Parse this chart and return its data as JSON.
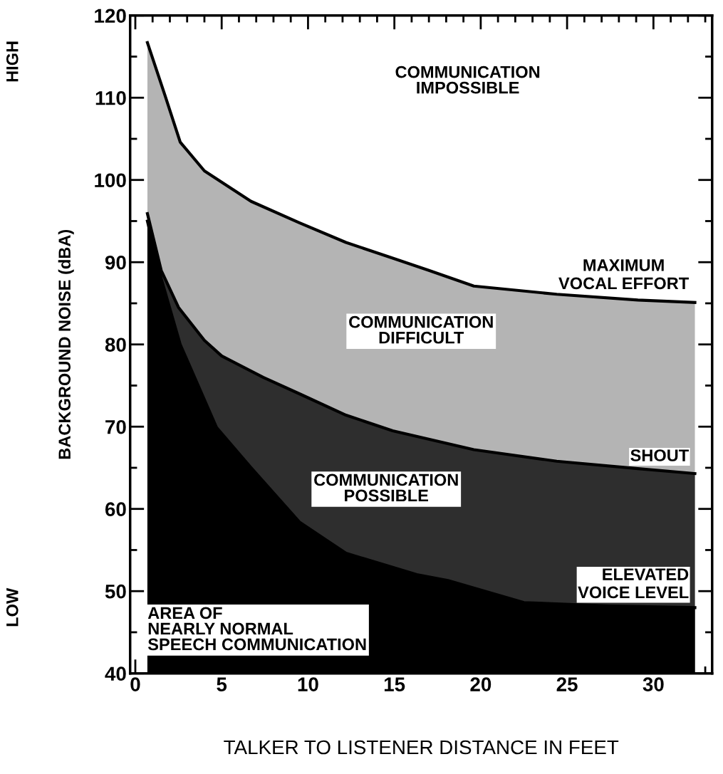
{
  "chart_data": {
    "type": "area",
    "xlabel": "TALKER TO LISTENER DISTANCE IN FEET",
    "ylabel": "BACKGROUND NOISE (dBA)",
    "xlim": [
      -0.3,
      33.4
    ],
    "ylim": [
      40,
      120
    ],
    "xticks": [
      0,
      {
        "value": 1,
        "label": null
      },
      {
        "value": 2,
        "label": null
      },
      {
        "value": 3,
        "label": null
      },
      {
        "value": 4,
        "label": null
      },
      5,
      {
        "value": 6,
        "label": null
      },
      {
        "value": 7,
        "label": null
      },
      {
        "value": 8,
        "label": null
      },
      {
        "value": 9,
        "label": null
      },
      10,
      {
        "value": 11,
        "label": null
      },
      {
        "value": 12,
        "label": null
      },
      {
        "value": 13,
        "label": null
      },
      {
        "value": 14,
        "label": null
      },
      15,
      {
        "value": 16,
        "label": null
      },
      {
        "value": 17,
        "label": null
      },
      {
        "value": 18,
        "label": null
      },
      {
        "value": 19,
        "label": null
      },
      20,
      {
        "value": 21,
        "label": null
      },
      {
        "value": 22,
        "label": null
      },
      {
        "value": 23,
        "label": null
      },
      {
        "value": 24,
        "label": null
      },
      25,
      {
        "value": 26,
        "label": null
      },
      {
        "value": 27,
        "label": null
      },
      {
        "value": 28,
        "label": null
      },
      {
        "value": 29,
        "label": null
      },
      30,
      {
        "value": 31,
        "label": null
      },
      {
        "value": 32,
        "label": null
      },
      {
        "value": 33,
        "label": null
      }
    ],
    "yticks": [
      40,
      {
        "value": 45,
        "label": null
      },
      50,
      {
        "value": 55,
        "label": null
      },
      60,
      {
        "value": 65,
        "label": null
      },
      70,
      {
        "value": 75,
        "label": null
      },
      80,
      {
        "value": 85,
        "label": null
      },
      90,
      {
        "value": 95,
        "label": null
      },
      100,
      {
        "value": 105,
        "label": null
      },
      110,
      {
        "value": 115,
        "label": null
      },
      120
    ],
    "grid": false,
    "legend": "right",
    "series": [
      {
        "name": "MAXIMUM VOCAL EFFORT",
        "color": "#b4b4b4",
        "x": [
          0.7,
          1.7,
          2.6,
          4.0,
          6.7,
          9.5,
          12.2,
          14.9,
          17.0,
          19.6,
          24.4,
          29.1,
          32.4
        ],
        "values": [
          116.7,
          110.4,
          104.6,
          101.1,
          97.4,
          94.8,
          92.4,
          90.5,
          89,
          87.1,
          86.1,
          85.4,
          85.1
        ]
      },
      {
        "name": "SHOUT",
        "color": "#2e2e2e",
        "x": [
          0.7,
          1.5,
          2.5,
          4.0,
          5.0,
          7.4,
          9.5,
          12.2,
          14.9,
          19.6,
          24.4,
          29.1,
          32.4
        ],
        "values": [
          95.9,
          89,
          84.5,
          80.5,
          78.6,
          76,
          74,
          71.4,
          69.5,
          67.2,
          65.8,
          64.9,
          64.3
        ]
      },
      {
        "name": "ELEVATED VOICE LEVEL",
        "color": "#000000",
        "x": [
          0.7,
          1.5,
          2.6,
          4.7,
          6.7,
          9.5,
          12.2,
          16.3,
          18.1,
          22.5,
          27.5,
          32.4
        ],
        "values": [
          95,
          88,
          80,
          69.9,
          65,
          58.4,
          54.6,
          52,
          51.3,
          48.6,
          48.2,
          48
        ]
      }
    ],
    "annotations": [
      "HIGH",
      "LOW",
      "COMMUNICATION\nIMPOSSIBLE",
      "COMMUNICATION\nDIFFICULT",
      "COMMUNICATION\nPOSSIBLE",
      "AREA OF\nNEARLY NORMAL\nSPEECH COMMUNICATION"
    ]
  }
}
